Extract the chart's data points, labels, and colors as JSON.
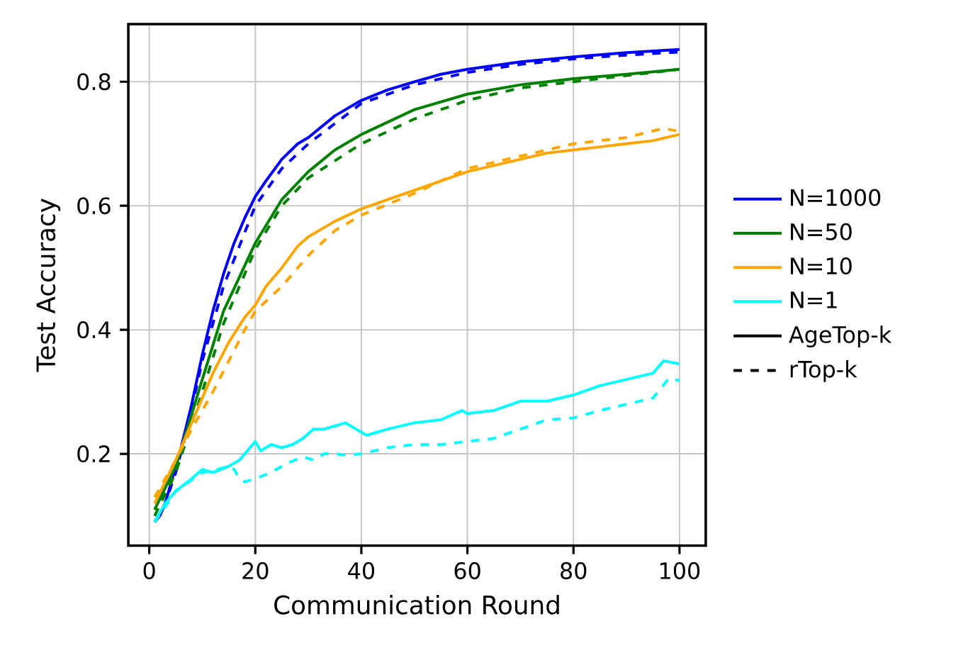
{
  "chart_data": {
    "type": "line",
    "xlabel": "Communication Round",
    "ylabel": "Test Accuracy",
    "xlim": [
      -3.95,
      104.95
    ],
    "ylim": [
      0.052,
      0.893
    ],
    "xticks": [
      0,
      20,
      40,
      60,
      80,
      100
    ],
    "yticks": [
      0.2,
      0.4,
      0.6,
      0.8
    ],
    "grid": true,
    "legend": "right",
    "marker": "none",
    "series": [
      {
        "name": "N=1000",
        "color": "#0000ff",
        "line_style": "solid",
        "x": [
          1,
          2,
          3,
          4,
          5,
          6,
          7,
          8,
          9,
          10,
          12,
          14,
          16,
          18,
          20,
          22,
          25,
          28,
          30,
          35,
          40,
          45,
          50,
          55,
          60,
          70,
          80,
          90,
          100
        ],
        "values": [
          0.09,
          0.1,
          0.12,
          0.15,
          0.18,
          0.21,
          0.245,
          0.28,
          0.32,
          0.36,
          0.43,
          0.49,
          0.54,
          0.58,
          0.615,
          0.64,
          0.675,
          0.7,
          0.71,
          0.745,
          0.77,
          0.787,
          0.8,
          0.812,
          0.82,
          0.832,
          0.84,
          0.847,
          0.852
        ]
      },
      {
        "color": "#0000ff",
        "line_style": "dashed",
        "x": [
          1,
          3,
          5,
          7,
          10,
          14,
          20,
          25,
          30,
          40,
          50,
          60,
          70,
          80,
          90,
          100
        ],
        "values": [
          0.09,
          0.12,
          0.17,
          0.235,
          0.35,
          0.47,
          0.6,
          0.66,
          0.7,
          0.765,
          0.795,
          0.815,
          0.828,
          0.837,
          0.843,
          0.848
        ]
      },
      {
        "name": "N=50",
        "color": "#008000",
        "line_style": "solid",
        "x": [
          1,
          5,
          10,
          14,
          20,
          25,
          30,
          35,
          40,
          50,
          60,
          70,
          80,
          90,
          100
        ],
        "values": [
          0.11,
          0.18,
          0.32,
          0.43,
          0.54,
          0.61,
          0.655,
          0.69,
          0.715,
          0.755,
          0.78,
          0.795,
          0.805,
          0.812,
          0.82
        ]
      },
      {
        "color": "#008000",
        "line_style": "dashed",
        "x": [
          1,
          5,
          10,
          14,
          20,
          25,
          30,
          40,
          50,
          60,
          70,
          80,
          90,
          100
        ],
        "values": [
          0.1,
          0.17,
          0.3,
          0.41,
          0.53,
          0.6,
          0.645,
          0.7,
          0.74,
          0.77,
          0.79,
          0.8,
          0.81,
          0.82
        ]
      },
      {
        "name": "N=10",
        "color": "#ffa500",
        "line_style": "solid",
        "x": [
          1,
          5,
          8,
          10,
          12,
          15,
          18,
          20,
          22,
          25,
          28,
          30,
          33,
          35,
          40,
          45,
          50,
          55,
          60,
          65,
          70,
          75,
          80,
          85,
          90,
          95,
          100
        ],
        "values": [
          0.12,
          0.19,
          0.25,
          0.29,
          0.33,
          0.38,
          0.42,
          0.44,
          0.47,
          0.5,
          0.535,
          0.55,
          0.565,
          0.575,
          0.595,
          0.61,
          0.625,
          0.64,
          0.655,
          0.665,
          0.675,
          0.685,
          0.69,
          0.695,
          0.7,
          0.705,
          0.715
        ]
      },
      {
        "color": "#ffa500",
        "line_style": "dashed",
        "x": [
          1,
          5,
          8,
          10,
          12,
          15,
          18,
          20,
          25,
          30,
          35,
          40,
          50,
          60,
          70,
          80,
          90,
          97,
          100
        ],
        "values": [
          0.13,
          0.19,
          0.24,
          0.27,
          0.3,
          0.35,
          0.4,
          0.43,
          0.47,
          0.52,
          0.56,
          0.585,
          0.62,
          0.66,
          0.68,
          0.7,
          0.71,
          0.725,
          0.72
        ]
      },
      {
        "name": "N=1",
        "color": "#00ffff",
        "line_style": "solid",
        "x": [
          1,
          3,
          5,
          8,
          10,
          12,
          15,
          17,
          19,
          20,
          21,
          23,
          25,
          27,
          29,
          31,
          33,
          35,
          37,
          39,
          41,
          43,
          45,
          50,
          55,
          59,
          60,
          65,
          70,
          75,
          80,
          85,
          90,
          95,
          97,
          100
        ],
        "values": [
          0.09,
          0.12,
          0.14,
          0.16,
          0.175,
          0.17,
          0.18,
          0.19,
          0.21,
          0.22,
          0.205,
          0.215,
          0.21,
          0.215,
          0.225,
          0.24,
          0.24,
          0.245,
          0.25,
          0.24,
          0.23,
          0.235,
          0.24,
          0.25,
          0.255,
          0.27,
          0.265,
          0.27,
          0.285,
          0.285,
          0.295,
          0.31,
          0.32,
          0.33,
          0.35,
          0.345
        ]
      },
      {
        "color": "#00ffff",
        "line_style": "dashed",
        "x": [
          1,
          5,
          10,
          13,
          15,
          16,
          17,
          18,
          20,
          23,
          26,
          29,
          31,
          33,
          35,
          37,
          40,
          45,
          50,
          55,
          60,
          65,
          70,
          75,
          80,
          85,
          90,
          95,
          98,
          100
        ],
        "values": [
          0.09,
          0.14,
          0.17,
          0.175,
          0.18,
          0.175,
          0.16,
          0.155,
          0.16,
          0.17,
          0.185,
          0.195,
          0.19,
          0.2,
          0.2,
          0.198,
          0.2,
          0.21,
          0.215,
          0.215,
          0.22,
          0.225,
          0.24,
          0.255,
          0.258,
          0.27,
          0.28,
          0.29,
          0.322,
          0.318
        ]
      },
      {
        "name": "AgeTop-k",
        "color": "#000000",
        "line_style": "solid"
      },
      {
        "name": "rTop-k",
        "color": "#000000",
        "line_style": "dashed"
      }
    ]
  }
}
